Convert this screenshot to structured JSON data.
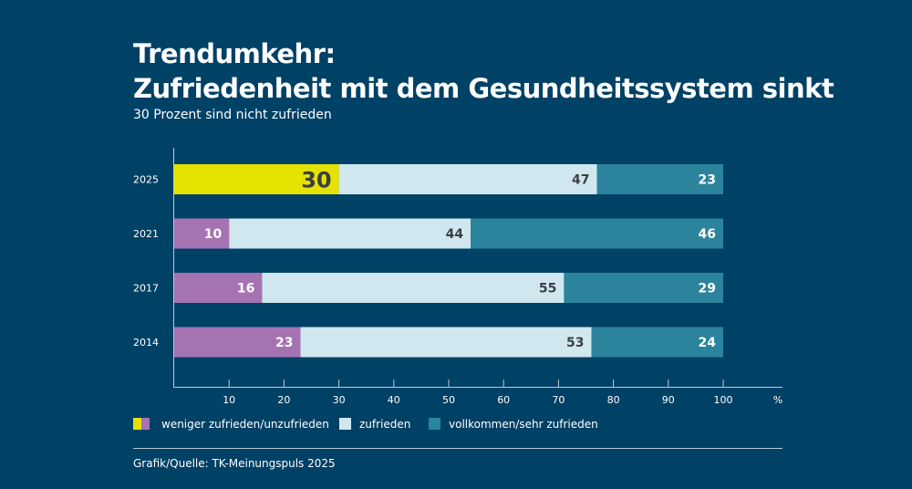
{
  "chart_data": {
    "type": "bar",
    "orientation": "horizontal",
    "stacked": true,
    "title_line1": "Trendumkehr:",
    "title_line2": "Zufriedenheit mit dem Gesundheitssystem sinkt",
    "subtitle": "30 Prozent sind nicht zufrieden",
    "categories": [
      "2025",
      "2021",
      "2017",
      "2014"
    ],
    "series": [
      {
        "name": "weniger zufrieden/unzufrieden",
        "values": [
          30,
          10,
          16,
          23
        ],
        "color": "#a673b2",
        "highlight_color": "#e6e200",
        "label_color": "#ffffff"
      },
      {
        "name": "zufrieden",
        "values": [
          47,
          44,
          55,
          53
        ],
        "color": "#d0e7ef",
        "label_color": "#3b3f45"
      },
      {
        "name": "vollkommen/sehr zufrieden",
        "values": [
          23,
          46,
          29,
          24
        ],
        "color": "#2c839c",
        "label_color": "#ffffff"
      }
    ],
    "x_ticks": [
      "10",
      "20",
      "30",
      "40",
      "50",
      "60",
      "70",
      "80",
      "90",
      "100"
    ],
    "x_unit": "%",
    "xlim": [
      0,
      100
    ],
    "grid": false,
    "legend_position": "bottom-left",
    "background": "#004166",
    "source": "Grafik/Quelle: TK-Meinungspuls 2025"
  }
}
